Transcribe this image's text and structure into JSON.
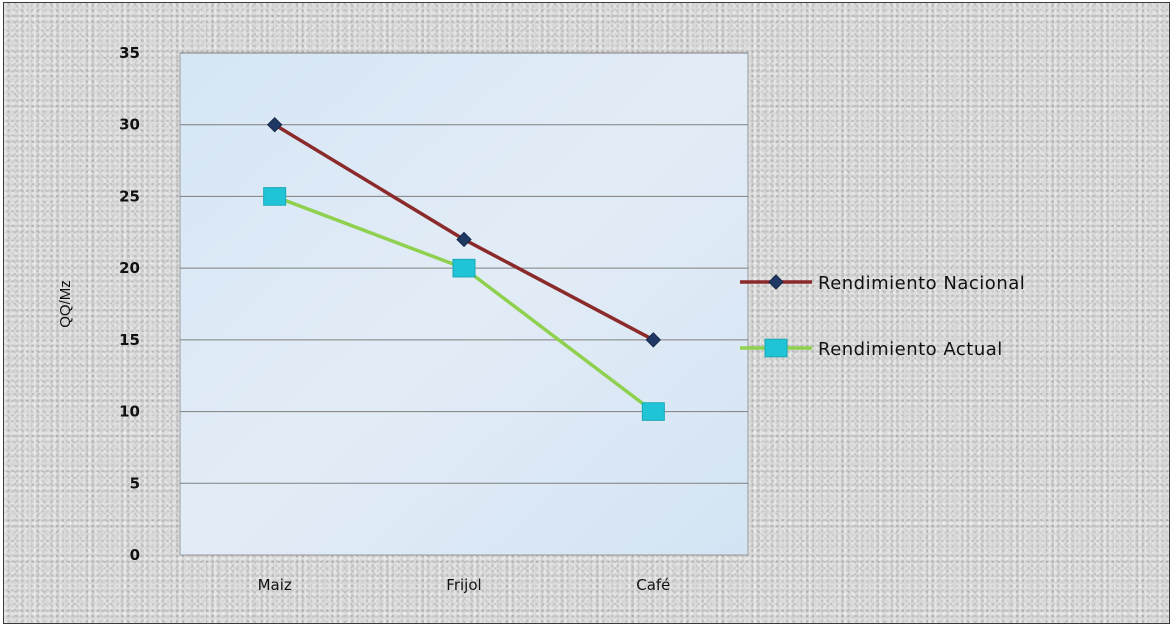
{
  "chart_data": {
    "type": "line",
    "title": "",
    "xlabel": "",
    "ylabel": "QQ/Mz",
    "categories": [
      "Maiz",
      "Frijol",
      "Café"
    ],
    "ylim": [
      0,
      35
    ],
    "yticks": [
      0,
      5,
      10,
      15,
      20,
      25,
      30,
      35
    ],
    "grid": true,
    "legend_position": "right",
    "series": [
      {
        "name": "Rendimiento Nacional",
        "values": [
          30,
          22,
          15
        ],
        "color": "#8b2a2a",
        "marker": "diamond",
        "marker_color": "#1f3864"
      },
      {
        "name": "Rendimiento Actual",
        "values": [
          25,
          20,
          10
        ],
        "color": "#8fd14f",
        "marker": "square",
        "marker_color": "#1fc4d6"
      }
    ]
  }
}
